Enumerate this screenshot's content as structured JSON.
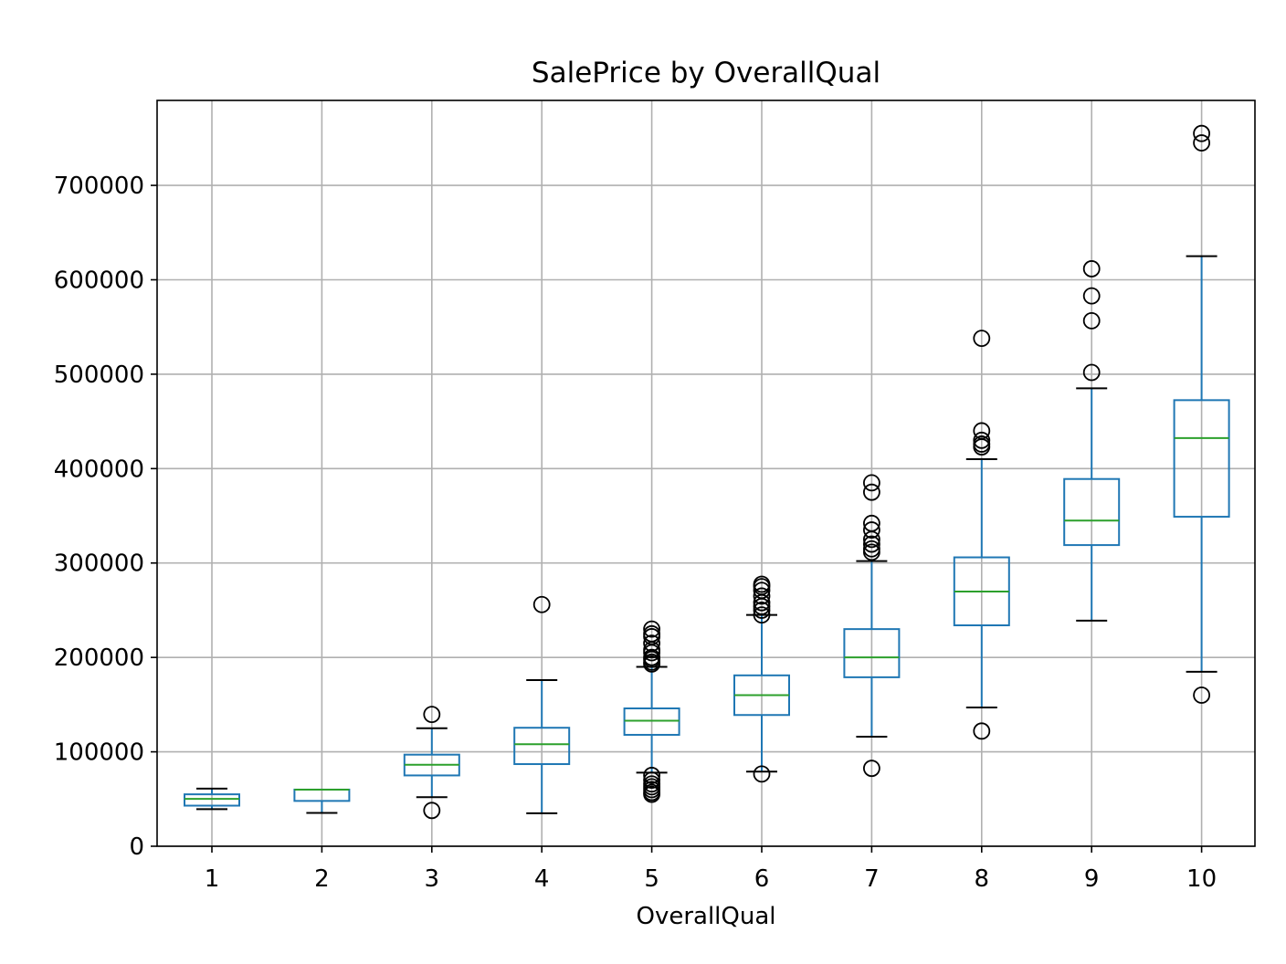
{
  "chart_data": {
    "type": "box",
    "title": "SalePrice by OverallQual",
    "xlabel": "OverallQual",
    "ylabel": "",
    "ylim": [
      0,
      790000
    ],
    "yticks": [
      0,
      100000,
      200000,
      300000,
      400000,
      500000,
      600000,
      700000
    ],
    "ytick_labels": [
      "0",
      "100000",
      "200000",
      "300000",
      "400000",
      "500000",
      "600000",
      "700000"
    ],
    "categories": [
      "1",
      "2",
      "3",
      "4",
      "5",
      "6",
      "7",
      "8",
      "9",
      "10"
    ],
    "grid": true,
    "colors": {
      "box": "#1f77b4",
      "median": "#2ca02c",
      "whisker_cap": "#000000",
      "grid": "#b0b0b0",
      "flier": "#000000"
    },
    "boxes": [
      {
        "category": "1",
        "whislo": 39300,
        "q1": 43000,
        "med": 50150,
        "q3": 55000,
        "whishi": 61000,
        "fliers": []
      },
      {
        "category": "2",
        "whislo": 35300,
        "q1": 48000,
        "med": 60000,
        "q3": 60000,
        "whishi": 60000,
        "fliers": []
      },
      {
        "category": "3",
        "whislo": 52000,
        "q1": 75000,
        "med": 86250,
        "q3": 97000,
        "whishi": 125000,
        "fliers": [
          139600,
          37900
        ]
      },
      {
        "category": "4",
        "whislo": 34900,
        "q1": 87000,
        "med": 108000,
        "q3": 125500,
        "whishi": 176000,
        "fliers": [
          256000
        ]
      },
      {
        "category": "5",
        "whislo": 78000,
        "q1": 118000,
        "med": 133000,
        "q3": 146000,
        "whishi": 190000,
        "fliers": [
          230000,
          225000,
          222000,
          215000,
          208000,
          205000,
          200000,
          198000,
          195000,
          193000,
          75000,
          70000,
          66000,
          63000,
          60000,
          57000,
          55000
        ]
      },
      {
        "category": "6",
        "whislo": 79000,
        "q1": 139000,
        "med": 160000,
        "q3": 181000,
        "whishi": 245000,
        "fliers": [
          277500,
          275000,
          271000,
          265000,
          258000,
          254000,
          250000,
          245000,
          76500
        ]
      },
      {
        "category": "7",
        "whislo": 116000,
        "q1": 179000,
        "med": 200000,
        "q3": 230000,
        "whishi": 302000,
        "fliers": [
          385000,
          375000,
          342000,
          335000,
          325000,
          320000,
          315000,
          311500,
          82500
        ]
      },
      {
        "category": "8",
        "whislo": 147000,
        "q1": 234000,
        "med": 269750,
        "q3": 306000,
        "whishi": 410000,
        "fliers": [
          538000,
          440000,
          430000,
          426000,
          423000,
          122000
        ]
      },
      {
        "category": "9",
        "whislo": 239000,
        "q1": 319000,
        "med": 345000,
        "q3": 389000,
        "whishi": 485000,
        "fliers": [
          611657,
          582933,
          556581,
          501837
        ]
      },
      {
        "category": "10",
        "whislo": 184750,
        "q1": 349000,
        "med": 432390,
        "q3": 472500,
        "whishi": 625000,
        "fliers": [
          755000,
          745000,
          160000
        ]
      }
    ]
  }
}
